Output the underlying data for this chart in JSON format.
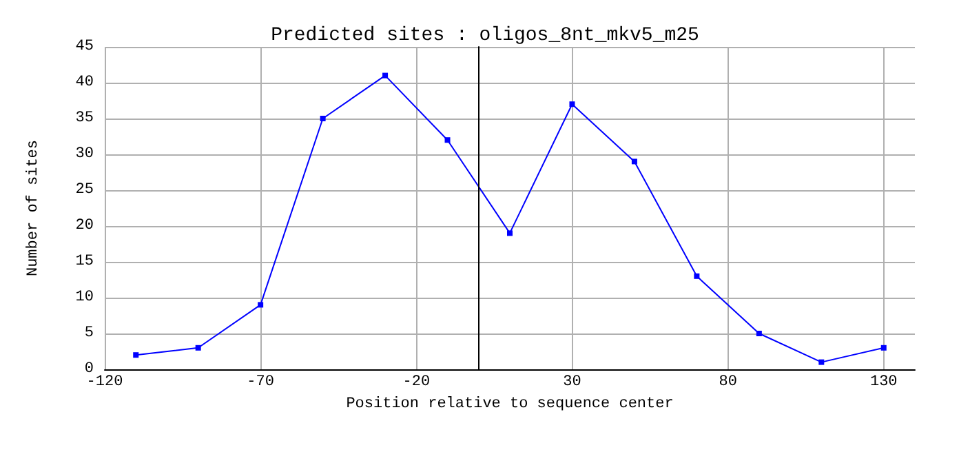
{
  "chart_data": {
    "type": "line",
    "title": "Predicted sites : oligos_8nt_mkv5_m25",
    "xlabel": "Position relative to sequence center",
    "ylabel": "Number of sites",
    "x": [
      -110,
      -90,
      -70,
      -50,
      -30,
      -10,
      10,
      30,
      50,
      70,
      90,
      110,
      130
    ],
    "series": [
      {
        "color": "#0000ff",
        "values": [
          2,
          3,
          9,
          35,
          41,
          32,
          19,
          37,
          29,
          13,
          5,
          1,
          3
        ]
      }
    ],
    "xlim": [
      -120,
      140
    ],
    "xticks": [
      -120,
      -70,
      -20,
      30,
      80,
      130
    ],
    "ylim": [
      0,
      45
    ],
    "yticks": [
      0,
      5,
      10,
      15,
      20,
      25,
      30,
      35,
      40,
      45
    ],
    "ref_lines": [
      {
        "axis": "x",
        "value": 0,
        "color": "#000000"
      }
    ],
    "grid": true,
    "marker": "square",
    "line_style": "solid"
  }
}
